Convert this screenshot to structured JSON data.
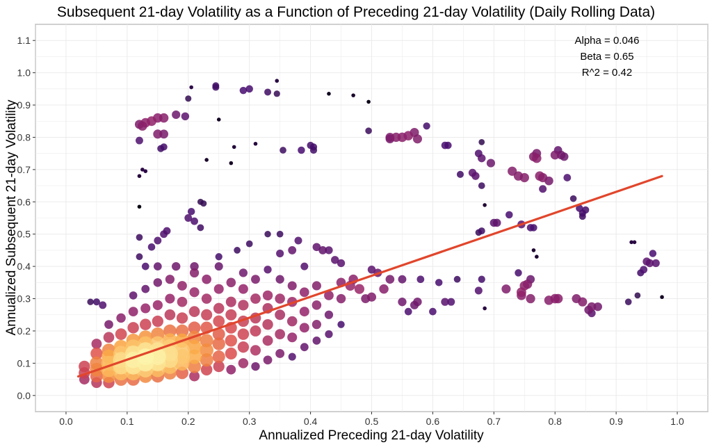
{
  "chart_data": {
    "type": "scatter",
    "title": "Subsequent 21-day Volatility as a Function of Preceding 21-day Volatility (Daily Rolling Data)",
    "xlabel": "Annualized Preceding 21-day Volatility",
    "ylabel": "Annualized Subsequent 21-day Volatility",
    "xlim": [
      -0.05,
      1.05
    ],
    "ylim": [
      -0.05,
      1.15
    ],
    "xticks": [
      "0.0",
      "0.1",
      "0.2",
      "0.3",
      "0.4",
      "0.5",
      "0.6",
      "0.7",
      "0.8",
      "0.9",
      "1.0"
    ],
    "yticks": [
      "0.0",
      "0.1",
      "0.2",
      "0.3",
      "0.4",
      "0.5",
      "0.6",
      "0.7",
      "0.8",
      "0.9",
      "1.0",
      "1.1"
    ],
    "grid": true,
    "point_coloring": "density (inferno: dark purple = sparse, light yellow = dense)",
    "annotations": [
      "Alpha = 0.046",
      "Beta = 0.65",
      "R^2 = 0.42"
    ],
    "regression": {
      "alpha": 0.046,
      "beta": 0.65,
      "x_range": [
        0.02,
        0.975
      ],
      "color": "#e1462c"
    },
    "points": [
      [
        0.12,
        0.84
      ],
      [
        0.125,
        0.835
      ],
      [
        0.13,
        0.845
      ],
      [
        0.12,
        0.79
      ],
      [
        0.125,
        0.7
      ],
      [
        0.13,
        0.695
      ],
      [
        0.12,
        0.68
      ],
      [
        0.12,
        0.585
      ],
      [
        0.14,
        0.85
      ],
      [
        0.15,
        0.86
      ],
      [
        0.16,
        0.86
      ],
      [
        0.15,
        0.81
      ],
      [
        0.16,
        0.81
      ],
      [
        0.16,
        0.77
      ],
      [
        0.155,
        0.765
      ],
      [
        0.18,
        0.87
      ],
      [
        0.195,
        0.865
      ],
      [
        0.2,
        0.92
      ],
      [
        0.205,
        0.955
      ],
      [
        0.23,
        0.73
      ],
      [
        0.245,
        0.96
      ],
      [
        0.245,
        0.955
      ],
      [
        0.25,
        0.855
      ],
      [
        0.27,
        0.72
      ],
      [
        0.275,
        0.77
      ],
      [
        0.29,
        0.945
      ],
      [
        0.3,
        0.95
      ],
      [
        0.31,
        0.78
      ],
      [
        0.33,
        0.94
      ],
      [
        0.345,
        0.975
      ],
      [
        0.345,
        0.935
      ],
      [
        0.355,
        0.76
      ],
      [
        0.385,
        0.76
      ],
      [
        0.4,
        0.775
      ],
      [
        0.405,
        0.77
      ],
      [
        0.405,
        0.76
      ],
      [
        0.43,
        0.935
      ],
      [
        0.47,
        0.93
      ],
      [
        0.495,
        0.91
      ],
      [
        0.495,
        0.82
      ],
      [
        0.53,
        0.8
      ],
      [
        0.53,
        0.795
      ],
      [
        0.54,
        0.8
      ],
      [
        0.55,
        0.8
      ],
      [
        0.56,
        0.805
      ],
      [
        0.57,
        0.815
      ],
      [
        0.575,
        0.795
      ],
      [
        0.59,
        0.835
      ],
      [
        0.62,
        0.775
      ],
      [
        0.625,
        0.775
      ],
      [
        0.645,
        0.685
      ],
      [
        0.665,
        0.69
      ],
      [
        0.67,
        0.68
      ],
      [
        0.68,
        0.785
      ],
      [
        0.675,
        0.75
      ],
      [
        0.68,
        0.735
      ],
      [
        0.695,
        0.72
      ],
      [
        0.68,
        0.65
      ],
      [
        0.685,
        0.59
      ],
      [
        0.7,
        0.535
      ],
      [
        0.705,
        0.535
      ],
      [
        0.68,
        0.51
      ],
      [
        0.675,
        0.505
      ],
      [
        0.725,
        0.56
      ],
      [
        0.73,
        0.695
      ],
      [
        0.74,
        0.68
      ],
      [
        0.75,
        0.675
      ],
      [
        0.765,
        0.74
      ],
      [
        0.77,
        0.75
      ],
      [
        0.77,
        0.735
      ],
      [
        0.775,
        0.68
      ],
      [
        0.78,
        0.675
      ],
      [
        0.79,
        0.665
      ],
      [
        0.8,
        0.745
      ],
      [
        0.805,
        0.76
      ],
      [
        0.81,
        0.745
      ],
      [
        0.815,
        0.74
      ],
      [
        0.82,
        0.675
      ],
      [
        0.78,
        0.64
      ],
      [
        0.76,
        0.52
      ],
      [
        0.765,
        0.52
      ],
      [
        0.745,
        0.53
      ],
      [
        0.765,
        0.45
      ],
      [
        0.77,
        0.43
      ],
      [
        0.83,
        0.61
      ],
      [
        0.84,
        0.58
      ],
      [
        0.845,
        0.565
      ],
      [
        0.845,
        0.555
      ],
      [
        0.85,
        0.575
      ],
      [
        0.64,
        0.36
      ],
      [
        0.675,
        0.325
      ],
      [
        0.68,
        0.36
      ],
      [
        0.685,
        0.27
      ],
      [
        0.72,
        0.33
      ],
      [
        0.74,
        0.38
      ],
      [
        0.745,
        0.32
      ],
      [
        0.745,
        0.31
      ],
      [
        0.75,
        0.34
      ],
      [
        0.755,
        0.345
      ],
      [
        0.76,
        0.36
      ],
      [
        0.76,
        0.3
      ],
      [
        0.79,
        0.295
      ],
      [
        0.8,
        0.3
      ],
      [
        0.805,
        0.3
      ],
      [
        0.835,
        0.3
      ],
      [
        0.845,
        0.29
      ],
      [
        0.855,
        0.265
      ],
      [
        0.86,
        0.255
      ],
      [
        0.86,
        0.275
      ],
      [
        0.87,
        0.275
      ],
      [
        0.92,
        0.29
      ],
      [
        0.935,
        0.31
      ],
      [
        0.925,
        0.475
      ],
      [
        0.93,
        0.475
      ],
      [
        0.94,
        0.38
      ],
      [
        0.945,
        0.39
      ],
      [
        0.955,
        0.41
      ],
      [
        0.96,
        0.44
      ],
      [
        0.965,
        0.41
      ],
      [
        0.975,
        0.305
      ],
      [
        0.95,
        0.415
      ],
      [
        0.5,
        0.39
      ],
      [
        0.51,
        0.38
      ],
      [
        0.52,
        0.33
      ],
      [
        0.53,
        0.36
      ],
      [
        0.55,
        0.29
      ],
      [
        0.56,
        0.26
      ],
      [
        0.57,
        0.28
      ],
      [
        0.575,
        0.29
      ],
      [
        0.58,
        0.36
      ],
      [
        0.61,
        0.35
      ],
      [
        0.6,
        0.26
      ],
      [
        0.62,
        0.29
      ],
      [
        0.63,
        0.29
      ],
      [
        0.55,
        0.36
      ],
      [
        0.465,
        0.34
      ],
      [
        0.47,
        0.36
      ],
      [
        0.48,
        0.33
      ],
      [
        0.49,
        0.3
      ],
      [
        0.5,
        0.305
      ],
      [
        0.45,
        0.41
      ],
      [
        0.44,
        0.42
      ],
      [
        0.43,
        0.45
      ],
      [
        0.42,
        0.45
      ],
      [
        0.41,
        0.46
      ],
      [
        0.38,
        0.48
      ],
      [
        0.37,
        0.45
      ],
      [
        0.35,
        0.5
      ],
      [
        0.33,
        0.5
      ],
      [
        0.3,
        0.47
      ],
      [
        0.28,
        0.45
      ],
      [
        0.25,
        0.43
      ],
      [
        0.22,
        0.52
      ],
      [
        0.2,
        0.55
      ],
      [
        0.205,
        0.57
      ],
      [
        0.21,
        0.54
      ],
      [
        0.22,
        0.6
      ],
      [
        0.225,
        0.595
      ],
      [
        0.165,
        0.51
      ],
      [
        0.16,
        0.5
      ],
      [
        0.15,
        0.48
      ],
      [
        0.14,
        0.46
      ],
      [
        0.12,
        0.49
      ],
      [
        0.12,
        0.43
      ],
      [
        0.15,
        0.4
      ],
      [
        0.18,
        0.4
      ],
      [
        0.21,
        0.4
      ],
      [
        0.13,
        0.4
      ],
      [
        0.04,
        0.29
      ],
      [
        0.05,
        0.29
      ],
      [
        0.06,
        0.28
      ],
      [
        0.03,
        0.05
      ],
      [
        0.03,
        0.07
      ],
      [
        0.03,
        0.09
      ],
      [
        0.05,
        0.04
      ],
      [
        0.05,
        0.06
      ],
      [
        0.05,
        0.08
      ],
      [
        0.05,
        0.1
      ],
      [
        0.05,
        0.13
      ],
      [
        0.05,
        0.16
      ],
      [
        0.07,
        0.04
      ],
      [
        0.07,
        0.06
      ],
      [
        0.07,
        0.08
      ],
      [
        0.07,
        0.1
      ],
      [
        0.07,
        0.12
      ],
      [
        0.07,
        0.14
      ],
      [
        0.07,
        0.18
      ],
      [
        0.07,
        0.22
      ],
      [
        0.09,
        0.05
      ],
      [
        0.09,
        0.07
      ],
      [
        0.09,
        0.09
      ],
      [
        0.09,
        0.11
      ],
      [
        0.09,
        0.13
      ],
      [
        0.09,
        0.15
      ],
      [
        0.09,
        0.19
      ],
      [
        0.09,
        0.24
      ],
      [
        0.11,
        0.05
      ],
      [
        0.11,
        0.07
      ],
      [
        0.11,
        0.09
      ],
      [
        0.11,
        0.11
      ],
      [
        0.11,
        0.13
      ],
      [
        0.11,
        0.15
      ],
      [
        0.11,
        0.17
      ],
      [
        0.11,
        0.21
      ],
      [
        0.11,
        0.26
      ],
      [
        0.11,
        0.31
      ],
      [
        0.13,
        0.06
      ],
      [
        0.13,
        0.08
      ],
      [
        0.13,
        0.1
      ],
      [
        0.13,
        0.12
      ],
      [
        0.13,
        0.14
      ],
      [
        0.13,
        0.16
      ],
      [
        0.13,
        0.18
      ],
      [
        0.13,
        0.22
      ],
      [
        0.13,
        0.27
      ],
      [
        0.13,
        0.33
      ],
      [
        0.15,
        0.06
      ],
      [
        0.15,
        0.08
      ],
      [
        0.15,
        0.1
      ],
      [
        0.15,
        0.12
      ],
      [
        0.15,
        0.14
      ],
      [
        0.15,
        0.16
      ],
      [
        0.15,
        0.19
      ],
      [
        0.15,
        0.23
      ],
      [
        0.15,
        0.28
      ],
      [
        0.15,
        0.35
      ],
      [
        0.17,
        0.07
      ],
      [
        0.17,
        0.09
      ],
      [
        0.17,
        0.11
      ],
      [
        0.17,
        0.13
      ],
      [
        0.17,
        0.15
      ],
      [
        0.17,
        0.17
      ],
      [
        0.17,
        0.2
      ],
      [
        0.17,
        0.25
      ],
      [
        0.17,
        0.3
      ],
      [
        0.17,
        0.36
      ],
      [
        0.19,
        0.07
      ],
      [
        0.19,
        0.1
      ],
      [
        0.19,
        0.12
      ],
      [
        0.19,
        0.14
      ],
      [
        0.19,
        0.17
      ],
      [
        0.19,
        0.2
      ],
      [
        0.19,
        0.24
      ],
      [
        0.19,
        0.29
      ],
      [
        0.19,
        0.34
      ],
      [
        0.21,
        0.06
      ],
      [
        0.21,
        0.09
      ],
      [
        0.21,
        0.12
      ],
      [
        0.21,
        0.15
      ],
      [
        0.21,
        0.18
      ],
      [
        0.21,
        0.21
      ],
      [
        0.21,
        0.26
      ],
      [
        0.21,
        0.32
      ],
      [
        0.21,
        0.38
      ],
      [
        0.23,
        0.08
      ],
      [
        0.23,
        0.11
      ],
      [
        0.23,
        0.14
      ],
      [
        0.23,
        0.17
      ],
      [
        0.23,
        0.21
      ],
      [
        0.23,
        0.25
      ],
      [
        0.23,
        0.3
      ],
      [
        0.23,
        0.36
      ],
      [
        0.25,
        0.09
      ],
      [
        0.25,
        0.12
      ],
      [
        0.25,
        0.16
      ],
      [
        0.25,
        0.19
      ],
      [
        0.25,
        0.23
      ],
      [
        0.25,
        0.27
      ],
      [
        0.25,
        0.33
      ],
      [
        0.25,
        0.4
      ],
      [
        0.27,
        0.08
      ],
      [
        0.27,
        0.13
      ],
      [
        0.27,
        0.17
      ],
      [
        0.27,
        0.21
      ],
      [
        0.27,
        0.25
      ],
      [
        0.27,
        0.29
      ],
      [
        0.27,
        0.35
      ],
      [
        0.29,
        0.1
      ],
      [
        0.29,
        0.15
      ],
      [
        0.29,
        0.19
      ],
      [
        0.29,
        0.23
      ],
      [
        0.29,
        0.28
      ],
      [
        0.29,
        0.33
      ],
      [
        0.29,
        0.38
      ],
      [
        0.31,
        0.09
      ],
      [
        0.31,
        0.14
      ],
      [
        0.31,
        0.2
      ],
      [
        0.31,
        0.24
      ],
      [
        0.31,
        0.3
      ],
      [
        0.31,
        0.36
      ],
      [
        0.33,
        0.11
      ],
      [
        0.33,
        0.17
      ],
      [
        0.33,
        0.22
      ],
      [
        0.33,
        0.27
      ],
      [
        0.33,
        0.31
      ],
      [
        0.33,
        0.39
      ],
      [
        0.35,
        0.13
      ],
      [
        0.35,
        0.19
      ],
      [
        0.35,
        0.25
      ],
      [
        0.35,
        0.3
      ],
      [
        0.35,
        0.36
      ],
      [
        0.35,
        0.44
      ],
      [
        0.37,
        0.12
      ],
      [
        0.37,
        0.18
      ],
      [
        0.37,
        0.23
      ],
      [
        0.37,
        0.29
      ],
      [
        0.37,
        0.34
      ],
      [
        0.39,
        0.15
      ],
      [
        0.39,
        0.21
      ],
      [
        0.39,
        0.26
      ],
      [
        0.39,
        0.32
      ],
      [
        0.39,
        0.4
      ],
      [
        0.41,
        0.17
      ],
      [
        0.41,
        0.22
      ],
      [
        0.41,
        0.28
      ],
      [
        0.41,
        0.34
      ],
      [
        0.43,
        0.19
      ],
      [
        0.43,
        0.25
      ],
      [
        0.43,
        0.31
      ],
      [
        0.45,
        0.22
      ],
      [
        0.45,
        0.3
      ],
      [
        0.45,
        0.35
      ]
    ]
  }
}
